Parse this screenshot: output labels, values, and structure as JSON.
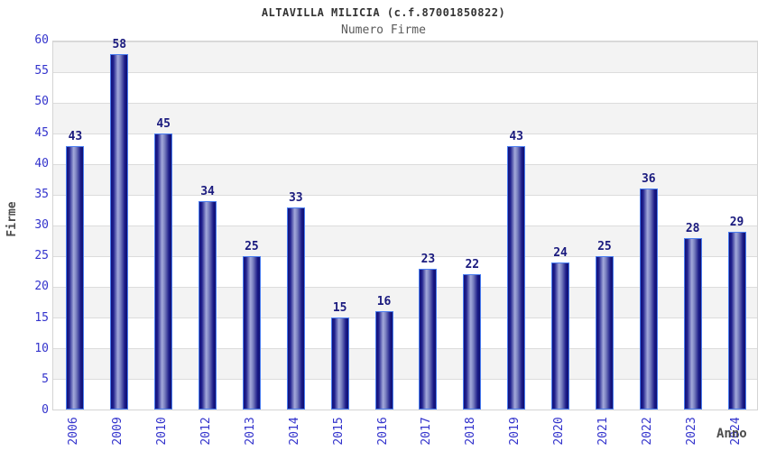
{
  "chart_data": {
    "type": "bar",
    "title": "ALTAVILLA MILICIA (c.f.87001850822)",
    "subtitle": "Numero Firme",
    "xlabel": "Anno",
    "ylabel": "Firme",
    "categories": [
      "2006",
      "2009",
      "2010",
      "2012",
      "2013",
      "2014",
      "2015",
      "2016",
      "2017",
      "2018",
      "2019",
      "2020",
      "2021",
      "2022",
      "2023",
      "2024"
    ],
    "values": [
      43,
      58,
      45,
      34,
      25,
      33,
      15,
      16,
      23,
      22,
      43,
      24,
      25,
      36,
      28,
      29
    ],
    "ylim": [
      0,
      60
    ],
    "yticks": [
      0,
      5,
      10,
      15,
      20,
      25,
      30,
      35,
      40,
      45,
      50,
      55,
      60
    ],
    "grid": "horizontal gridlines with alternating shaded bands",
    "legend": "none",
    "value_labels": "above each bar",
    "colors": {
      "tick_label": "#3333cc",
      "value_label": "#1a1a7e",
      "bar_border": "#4a7df0",
      "bar_dark": "#11117a",
      "bar_light": "#a3a9da",
      "band_alt": "#f3f3f3",
      "grid_line": "#dcdcdc",
      "title_color": "#333333",
      "subtitle_color": "#5a5a5a",
      "axis_title_color": "#4d4d4d"
    }
  }
}
